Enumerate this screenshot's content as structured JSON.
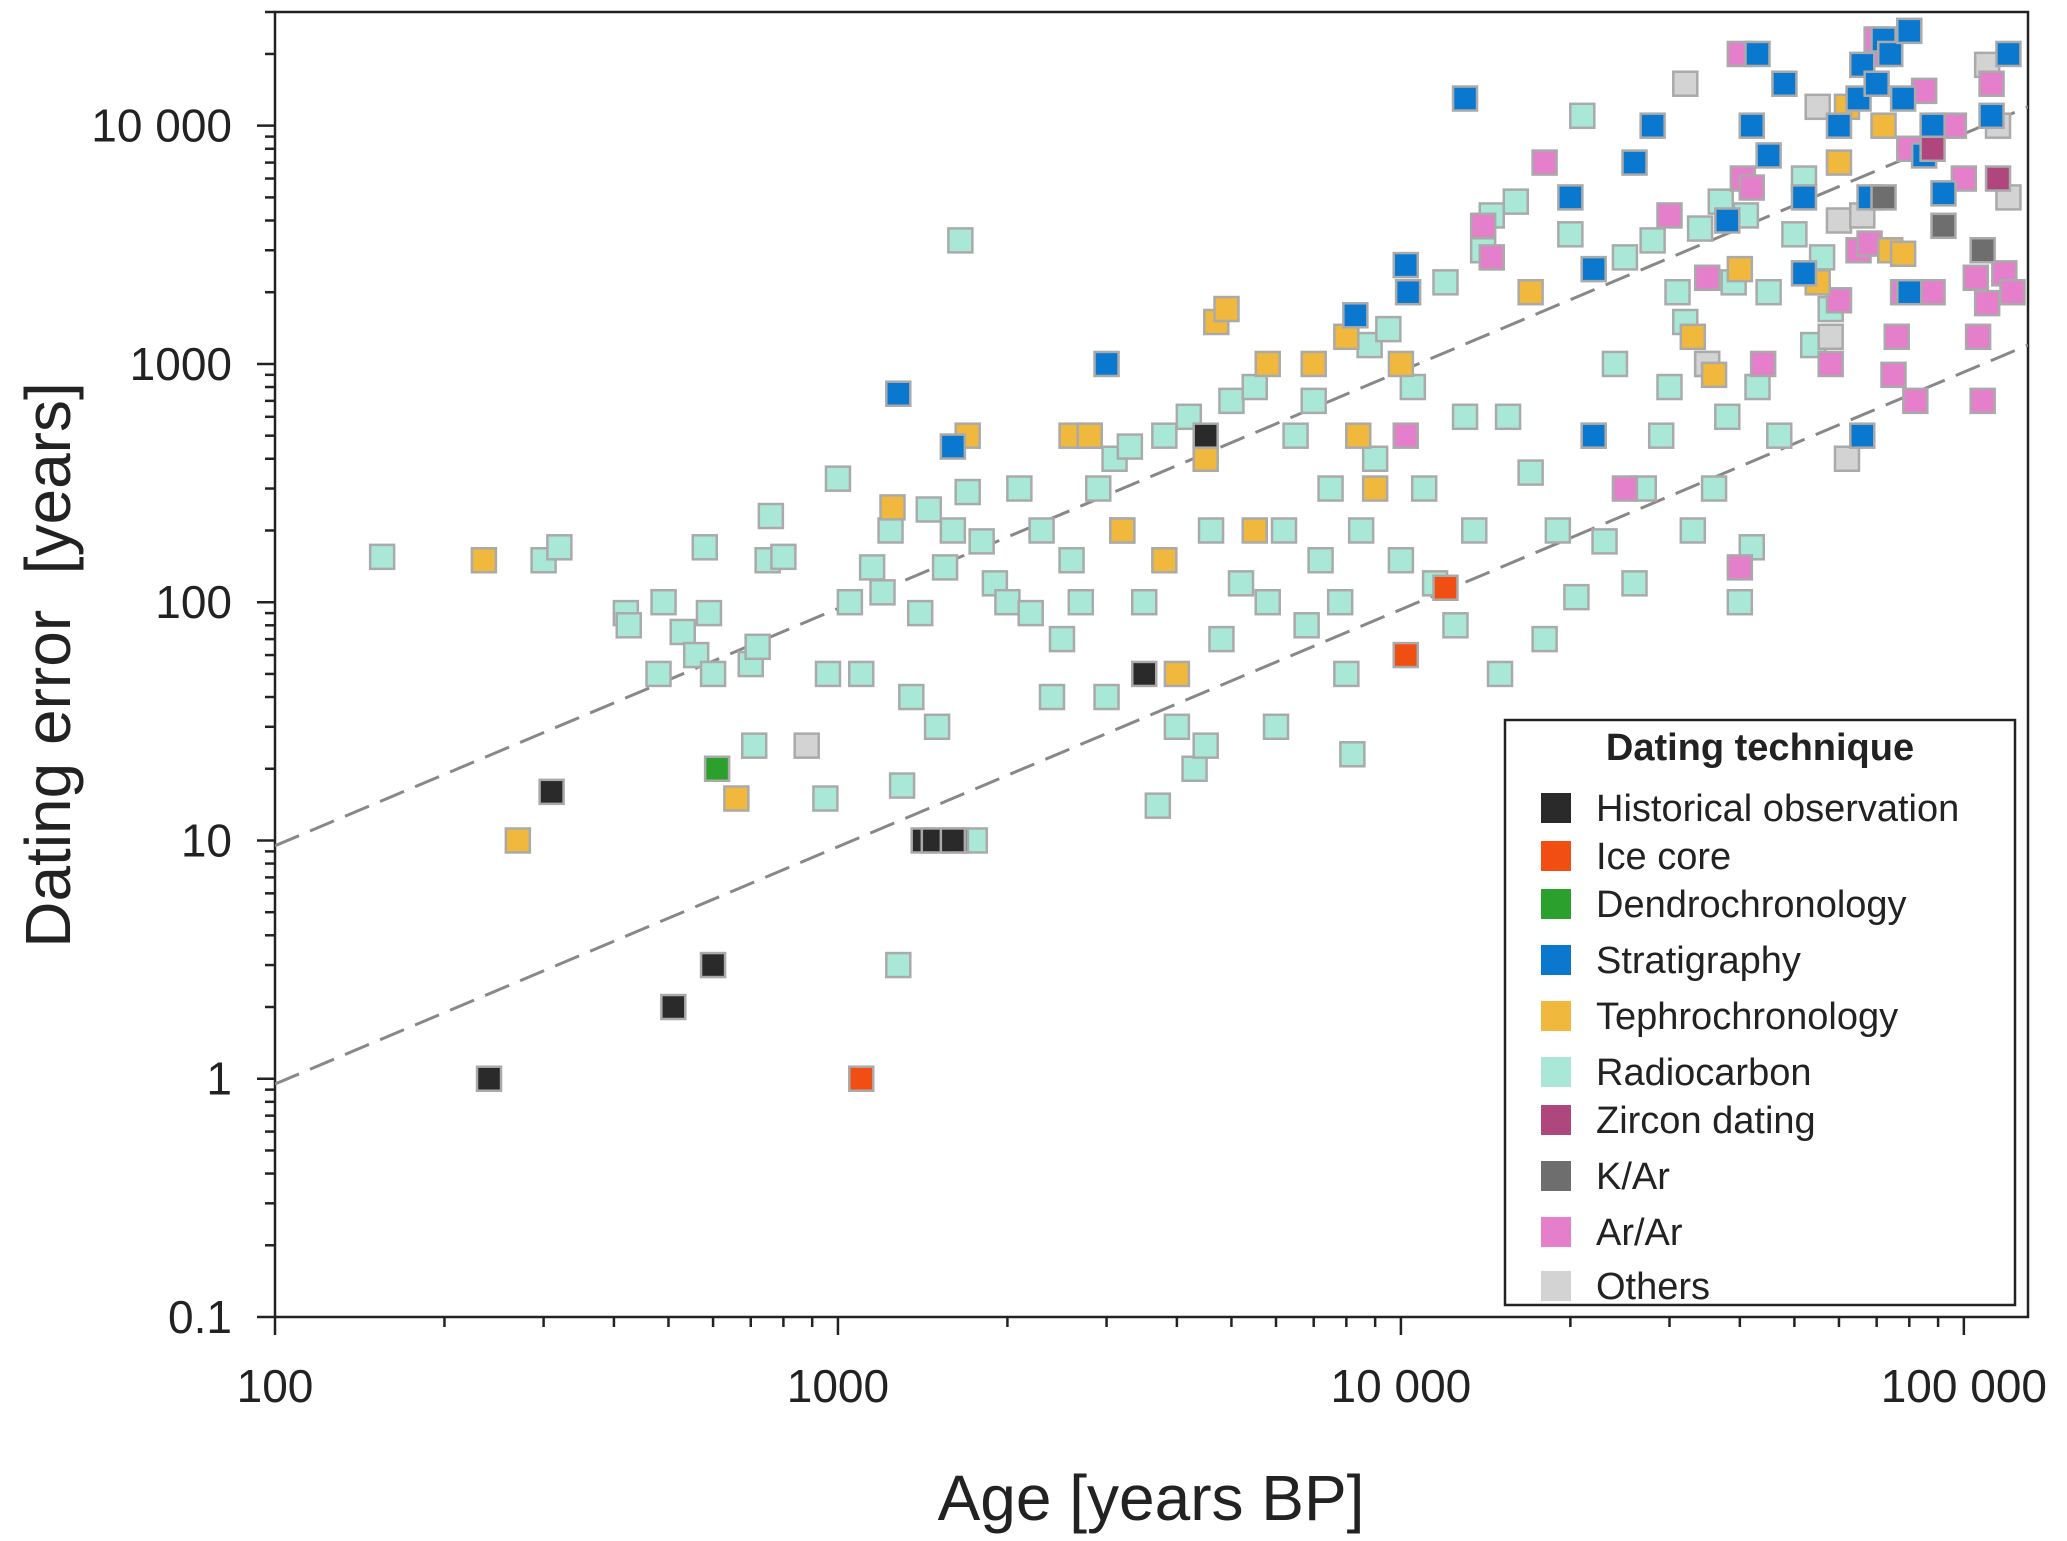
{
  "chart_data": {
    "type": "scatter",
    "title": "",
    "xlabel": "Age [years BP]",
    "ylabel": "Dating error  [years]",
    "xscale": "log",
    "yscale": "log",
    "xlim": [
      100,
      130000
    ],
    "ylim": [
      0.1,
      30000
    ],
    "x_ticks": [
      {
        "value": 100,
        "label": "100"
      },
      {
        "value": 1000,
        "label": "1000"
      },
      {
        "value": 10000,
        "label": "10 000"
      },
      {
        "value": 100000,
        "label": "100 000"
      }
    ],
    "y_ticks": [
      {
        "value": 0.1,
        "label": "0.1"
      },
      {
        "value": 1,
        "label": "1"
      },
      {
        "value": 10,
        "label": "10"
      },
      {
        "value": 100,
        "label": "100"
      },
      {
        "value": 1000,
        "label": "1000"
      },
      {
        "value": 10000,
        "label": "10 000"
      }
    ],
    "reference_lines": [
      {
        "name": "upper-dashed",
        "points": [
          [
            100,
            9.5
          ],
          [
            130000,
            12000
          ]
        ]
      },
      {
        "name": "lower-dashed",
        "points": [
          [
            100,
            0.95
          ],
          [
            130000,
            1200
          ]
        ]
      }
    ],
    "legend": {
      "title": "Dating technique",
      "position": "bottom-right"
    },
    "series": [
      {
        "name": "Historical observation",
        "color": "#2a2a2a",
        "points": [
          [
            240,
            1
          ],
          [
            310,
            16
          ],
          [
            510,
            2
          ],
          [
            600,
            3
          ],
          [
            1420,
            10
          ],
          [
            1480,
            10
          ],
          [
            1600,
            10
          ],
          [
            3500,
            50
          ],
          [
            4500,
            500
          ]
        ]
      },
      {
        "name": "Ice core",
        "color": "#f04e12",
        "points": [
          [
            1100,
            1
          ],
          [
            10200,
            60
          ],
          [
            12000,
            115
          ]
        ]
      },
      {
        "name": "Dendrochronology",
        "color": "#2ca02c",
        "points": [
          [
            610,
            20
          ]
        ]
      },
      {
        "name": "Stratigraphy",
        "color": "#0a78cf",
        "points": [
          [
            1280,
            750
          ],
          [
            1600,
            450
          ],
          [
            3000,
            1000
          ],
          [
            10200,
            2600
          ],
          [
            10300,
            2000
          ],
          [
            8300,
            1600
          ],
          [
            13000,
            13000
          ],
          [
            20000,
            5000
          ],
          [
            22000,
            2500
          ],
          [
            26000,
            7000
          ],
          [
            28000,
            10000
          ],
          [
            38000,
            4000
          ],
          [
            42000,
            10000
          ],
          [
            45000,
            7500
          ],
          [
            43000,
            20000
          ],
          [
            48000,
            15000
          ],
          [
            52000,
            5000
          ],
          [
            52000,
            2400
          ],
          [
            60000,
            10000
          ],
          [
            65000,
            13000
          ],
          [
            66000,
            18000
          ],
          [
            68000,
            5000
          ],
          [
            70000,
            15000
          ],
          [
            72000,
            23000
          ],
          [
            74000,
            20000
          ],
          [
            78000,
            13000
          ],
          [
            80000,
            25000
          ],
          [
            80000,
            2000
          ],
          [
            85000,
            7500
          ],
          [
            88000,
            10000
          ],
          [
            92000,
            5200
          ],
          [
            112000,
            11000
          ],
          [
            120000,
            20000
          ],
          [
            66000,
            500
          ],
          [
            22000,
            500
          ]
        ]
      },
      {
        "name": "Tephrochronology",
        "color": "#f0b83c",
        "points": [
          [
            235,
            150
          ],
          [
            270,
            10
          ],
          [
            660,
            15
          ],
          [
            1250,
            250
          ],
          [
            1700,
            500
          ],
          [
            2600,
            500
          ],
          [
            2800,
            500
          ],
          [
            3200,
            200
          ],
          [
            3800,
            150
          ],
          [
            4000,
            50
          ],
          [
            4500,
            400
          ],
          [
            4700,
            1500
          ],
          [
            4900,
            1700
          ],
          [
            5500,
            200
          ],
          [
            5800,
            1000
          ],
          [
            7000,
            1000
          ],
          [
            8000,
            1300
          ],
          [
            8400,
            500
          ],
          [
            9000,
            300
          ],
          [
            10000,
            1000
          ],
          [
            17000,
            2000
          ],
          [
            33000,
            1300
          ],
          [
            36000,
            900
          ],
          [
            40000,
            2500
          ],
          [
            55000,
            2200
          ],
          [
            60000,
            7000
          ],
          [
            62000,
            12000
          ],
          [
            72000,
            10000
          ],
          [
            74000,
            3000
          ],
          [
            78000,
            2900
          ]
        ]
      },
      {
        "name": "Radiocarbon",
        "color": "#a9e8d6",
        "points": [
          [
            155,
            155
          ],
          [
            300,
            150
          ],
          [
            320,
            170
          ],
          [
            420,
            90
          ],
          [
            425,
            80
          ],
          [
            480,
            50
          ],
          [
            490,
            100
          ],
          [
            530,
            75
          ],
          [
            560,
            60
          ],
          [
            580,
            170
          ],
          [
            590,
            90
          ],
          [
            600,
            50
          ],
          [
            700,
            55
          ],
          [
            710,
            25
          ],
          [
            720,
            65
          ],
          [
            750,
            150
          ],
          [
            760,
            230
          ],
          [
            800,
            155
          ],
          [
            950,
            15
          ],
          [
            960,
            50
          ],
          [
            1000,
            330
          ],
          [
            1050,
            100
          ],
          [
            1100,
            50
          ],
          [
            1150,
            140
          ],
          [
            1200,
            110
          ],
          [
            1240,
            200
          ],
          [
            1280,
            3
          ],
          [
            1300,
            17
          ],
          [
            1350,
            40
          ],
          [
            1400,
            90
          ],
          [
            1450,
            245
          ],
          [
            1500,
            30
          ],
          [
            1550,
            140
          ],
          [
            1600,
            200
          ],
          [
            1650,
            3300
          ],
          [
            1700,
            290
          ],
          [
            1750,
            10
          ],
          [
            1800,
            180
          ],
          [
            1900,
            120
          ],
          [
            2000,
            100
          ],
          [
            2100,
            300
          ],
          [
            2200,
            90
          ],
          [
            2300,
            200
          ],
          [
            2400,
            40
          ],
          [
            2500,
            70
          ],
          [
            2600,
            150
          ],
          [
            2700,
            100
          ],
          [
            2800,
            500
          ],
          [
            2900,
            300
          ],
          [
            3000,
            40
          ],
          [
            3100,
            400
          ],
          [
            3200,
            200
          ],
          [
            3300,
            450
          ],
          [
            3500,
            100
          ],
          [
            3700,
            14
          ],
          [
            3800,
            500
          ],
          [
            4000,
            30
          ],
          [
            4200,
            600
          ],
          [
            4300,
            20
          ],
          [
            4500,
            25
          ],
          [
            4600,
            200
          ],
          [
            4800,
            70
          ],
          [
            5000,
            700
          ],
          [
            5200,
            120
          ],
          [
            5500,
            800
          ],
          [
            5800,
            100
          ],
          [
            6000,
            30
          ],
          [
            6200,
            200
          ],
          [
            6500,
            500
          ],
          [
            6800,
            80
          ],
          [
            7000,
            700
          ],
          [
            7200,
            150
          ],
          [
            7500,
            300
          ],
          [
            7800,
            100
          ],
          [
            8000,
            50
          ],
          [
            8200,
            23
          ],
          [
            8500,
            200
          ],
          [
            8800,
            1200
          ],
          [
            9000,
            400
          ],
          [
            9500,
            1400
          ],
          [
            10000,
            150
          ],
          [
            10500,
            800
          ],
          [
            11000,
            300
          ],
          [
            11500,
            120
          ],
          [
            12000,
            2200
          ],
          [
            12500,
            80
          ],
          [
            13000,
            600
          ],
          [
            13500,
            200
          ],
          [
            14000,
            3000
          ],
          [
            14500,
            4200
          ],
          [
            15000,
            50
          ],
          [
            15500,
            600
          ],
          [
            16000,
            4800
          ],
          [
            17000,
            350
          ],
          [
            18000,
            70
          ],
          [
            19000,
            200
          ],
          [
            20000,
            3500
          ],
          [
            20500,
            105
          ],
          [
            21000,
            11000
          ],
          [
            22000,
            500
          ],
          [
            23000,
            180
          ],
          [
            24000,
            1000
          ],
          [
            25000,
            2800
          ],
          [
            26000,
            120
          ],
          [
            27000,
            300
          ],
          [
            28000,
            3300
          ],
          [
            29000,
            500
          ],
          [
            30000,
            800
          ],
          [
            31000,
            2000
          ],
          [
            32000,
            1500
          ],
          [
            33000,
            200
          ],
          [
            34000,
            3700
          ],
          [
            35000,
            1000
          ],
          [
            36000,
            300
          ],
          [
            37000,
            4800
          ],
          [
            38000,
            600
          ],
          [
            39000,
            2200
          ],
          [
            40000,
            100
          ],
          [
            41000,
            4200
          ],
          [
            42000,
            170
          ],
          [
            43000,
            800
          ],
          [
            45000,
            2000
          ],
          [
            47000,
            500
          ],
          [
            50000,
            3500
          ],
          [
            52000,
            6000
          ],
          [
            54000,
            1200
          ],
          [
            56000,
            2800
          ],
          [
            58000,
            1700
          ]
        ]
      },
      {
        "name": "Zircon dating",
        "color": "#b0467e",
        "points": [
          [
            88000,
            8000
          ],
          [
            115000,
            6000
          ]
        ]
      },
      {
        "name": "K/Ar",
        "color": "#6e6e6e",
        "points": [
          [
            72000,
            5000
          ],
          [
            92000,
            3800
          ],
          [
            108000,
            3000
          ],
          [
            1620,
            10
          ]
        ]
      },
      {
        "name": "Ar/Ar",
        "color": "#e57ecb",
        "points": [
          [
            18000,
            7000
          ],
          [
            25000,
            300
          ],
          [
            10200,
            500
          ],
          [
            14000,
            3800
          ],
          [
            14500,
            2800
          ],
          [
            30000,
            4200
          ],
          [
            35000,
            2300
          ],
          [
            40000,
            140
          ],
          [
            40500,
            6000
          ],
          [
            42000,
            5500
          ],
          [
            44000,
            1000
          ],
          [
            58000,
            1000
          ],
          [
            60000,
            1850
          ],
          [
            65000,
            3000
          ],
          [
            68000,
            3200
          ],
          [
            70000,
            23000
          ],
          [
            72000,
            20000
          ],
          [
            75000,
            900
          ],
          [
            76000,
            1300
          ],
          [
            78000,
            2000
          ],
          [
            80000,
            8000
          ],
          [
            82000,
            700
          ],
          [
            85000,
            14000
          ],
          [
            88000,
            2000
          ],
          [
            92000,
            10000
          ],
          [
            96000,
            10000
          ],
          [
            100000,
            6000
          ],
          [
            105000,
            2300
          ],
          [
            106000,
            1300
          ],
          [
            108000,
            700
          ],
          [
            110000,
            1800
          ],
          [
            112000,
            15000
          ],
          [
            118000,
            2400
          ],
          [
            122000,
            2000
          ],
          [
            40000,
            20000
          ]
        ]
      },
      {
        "name": "Others",
        "color": "#d3d3d3",
        "points": [
          [
            880,
            25
          ],
          [
            32000,
            15000
          ],
          [
            55000,
            12000
          ],
          [
            60000,
            4000
          ],
          [
            62000,
            400
          ],
          [
            66000,
            4200
          ],
          [
            110000,
            18000
          ],
          [
            115000,
            10000
          ],
          [
            120000,
            5000
          ],
          [
            58000,
            1300
          ],
          [
            35000,
            1000
          ]
        ]
      }
    ]
  }
}
